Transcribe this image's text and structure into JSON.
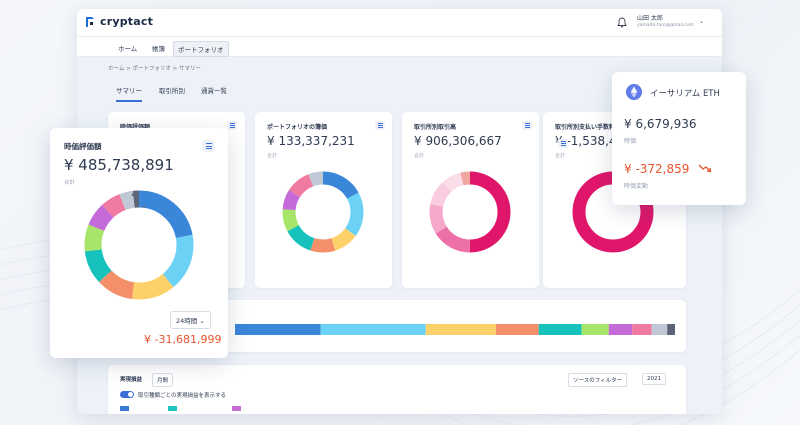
{
  "app": {
    "brand": "cryptact",
    "user": {
      "name": "山田 太郎",
      "email": "yamada-taro@gmail.com"
    }
  },
  "nav": {
    "items": [
      {
        "label": "ホーム",
        "active": false
      },
      {
        "label": "帳簿",
        "active": false
      },
      {
        "label": "ポートフォリオ",
        "active": true
      }
    ]
  },
  "breadcrumb": "ホーム > ポートフォリオ > サマリー",
  "subtabs": [
    {
      "label": "サマリー",
      "active": true
    },
    {
      "label": "取引所別",
      "active": false
    },
    {
      "label": "通貨一覧",
      "active": false
    }
  ],
  "cards": [
    {
      "title": "時価評価額",
      "value": "",
      "sub": ""
    },
    {
      "title": "ポートフォリオの簿価",
      "value": "¥ 133,337,231",
      "sub": "合計"
    },
    {
      "title": "取引所別取引高",
      "value": "¥ 906,306,667",
      "sub": "合計"
    },
    {
      "title": "取引所別支払い手数料",
      "value": "¥ -1,538,4",
      "sub": "合計"
    }
  ],
  "floating_left": {
    "title": "時価評価額",
    "value": "¥ 485,738,891",
    "sub": "合計",
    "period": "24時間",
    "change": "¥ -31,681,999"
  },
  "floating_right": {
    "coin": "イーサリアム ETH",
    "price": "¥ 6,679,936",
    "price_label": "時価",
    "change": "¥ -372,859",
    "change_label": "時価変動"
  },
  "bottom": {
    "title": "実現損益",
    "period": "月間",
    "toggle_label": "取引種類ごとの実現損益を表示する",
    "filter": "ソースのフィルター",
    "year": "2021",
    "legend_colors": [
      "#3a7bd5",
      "#1ec4c0",
      "#c86fd6"
    ]
  },
  "chart_data": [
    {
      "type": "pie",
      "title": "時価評価額",
      "colors": [
        "#3a86d9",
        "#6bd2f5",
        "#fdd16a",
        "#f48f6a",
        "#15c2bc",
        "#a6e46a",
        "#c46ad9",
        "#f07aa0",
        "#c0c8d6",
        "#5b6478"
      ],
      "values": [
        22,
        17,
        13,
        11,
        10,
        8,
        7,
        6,
        4,
        2
      ]
    },
    {
      "type": "pie",
      "title": "ポートフォリオの簿価",
      "colors": [
        "#3a86d9",
        "#6bd2f5",
        "#fdd16a",
        "#f48f6a",
        "#15c2bc",
        "#a6e46a",
        "#c46ad9",
        "#f07aa0",
        "#c0c8d6"
      ],
      "values": [
        17,
        18,
        10,
        10,
        12,
        9,
        8,
        10,
        6
      ]
    },
    {
      "type": "pie",
      "title": "取引所別取引高",
      "colors": [
        "#e0166b",
        "#ee70a8",
        "#f5a8c9",
        "#f9cce0",
        "#fbdde9",
        "#f2a6a0"
      ],
      "values": [
        50,
        16,
        12,
        10,
        8,
        4
      ]
    },
    {
      "type": "pie",
      "title": "取引所別支払い手数料",
      "colors": [
        "#e0166b"
      ],
      "values": [
        100
      ]
    },
    {
      "type": "bar",
      "stacked": true,
      "colors": [
        "#3a86d9",
        "#6bd2f5",
        "#fdd16a",
        "#f48f6a",
        "#15c2bc",
        "#a6e46a",
        "#c46ad9",
        "#f07aa0",
        "#c0c8d6",
        "#5b6478"
      ],
      "values": [
        22,
        27,
        18,
        11,
        11,
        7,
        6,
        5,
        4,
        2
      ]
    }
  ]
}
